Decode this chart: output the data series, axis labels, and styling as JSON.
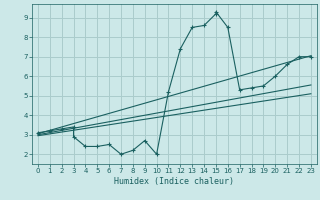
{
  "title": "",
  "xlabel": "Humidex (Indice chaleur)",
  "ylabel": "",
  "background_color": "#cce8e8",
  "grid_color": "#aacccc",
  "line_color": "#1a6060",
  "xlim": [
    -0.5,
    23.5
  ],
  "ylim": [
    1.5,
    9.7
  ],
  "xticks": [
    0,
    1,
    2,
    3,
    4,
    5,
    6,
    7,
    8,
    9,
    10,
    11,
    12,
    13,
    14,
    15,
    16,
    17,
    18,
    19,
    20,
    21,
    22,
    23
  ],
  "yticks": [
    2,
    3,
    4,
    5,
    6,
    7,
    8,
    9
  ],
  "curve1_x": [
    0,
    1,
    2,
    3,
    3,
    4,
    5,
    6,
    7,
    8,
    9,
    10,
    11,
    12,
    13,
    14,
    15,
    15,
    16,
    17,
    18,
    19,
    20,
    21,
    22,
    23
  ],
  "curve1_y": [
    3.1,
    3.2,
    3.3,
    3.4,
    2.9,
    2.4,
    2.4,
    2.5,
    2.0,
    2.2,
    2.7,
    2.0,
    5.2,
    7.4,
    8.5,
    8.6,
    9.2,
    9.3,
    8.5,
    5.3,
    5.4,
    5.5,
    6.0,
    6.6,
    7.0,
    7.0
  ],
  "line2_x": [
    0,
    23
  ],
  "line2_y": [
    3.05,
    7.05
  ],
  "line3_x": [
    0,
    23
  ],
  "line3_y": [
    3.0,
    5.55
  ],
  "line4_x": [
    0,
    23
  ],
  "line4_y": [
    2.95,
    5.1
  ]
}
